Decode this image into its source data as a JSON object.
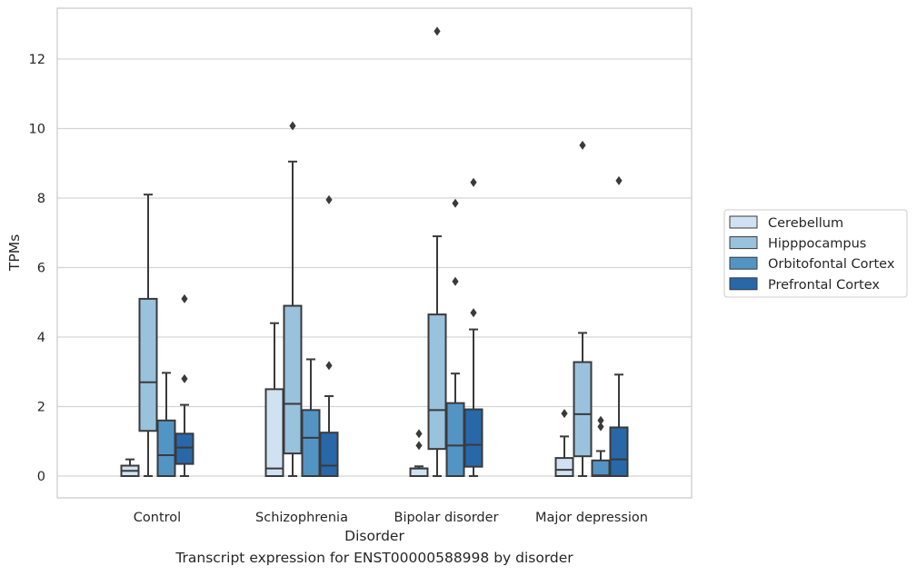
{
  "chart_data": {
    "type": "boxplot",
    "xlabel": "Disorder",
    "ylabel": "TPMs",
    "caption": "Transcript expression for ENST00000588998 by disorder",
    "ylim": [
      -0.6,
      13.5
    ],
    "yticks": [
      0,
      2,
      4,
      6,
      8,
      10,
      12
    ],
    "grid": true,
    "legend_position": "right",
    "categories": [
      "Control",
      "Schizophrenia",
      "Bipolar disorder",
      "Major depression"
    ],
    "series": [
      {
        "name": "Cerebellum",
        "color": "#d0e2f1",
        "boxes": [
          {
            "whislo": 0,
            "q1": 0,
            "med": 0.15,
            "q3": 0.3,
            "whishi": 0.48,
            "fliers": []
          },
          {
            "whislo": 0,
            "q1": 0,
            "med": 0.22,
            "q3": 2.5,
            "whishi": 4.4,
            "fliers": []
          },
          {
            "whislo": 0,
            "q1": 0,
            "med": 0.22,
            "q3": 0.22,
            "whishi": 0.28,
            "fliers": [
              0.88,
              1.22
            ]
          },
          {
            "whislo": 0,
            "q1": 0,
            "med": 0.18,
            "q3": 0.52,
            "whishi": 1.14,
            "fliers": [
              1.8
            ]
          }
        ]
      },
      {
        "name": "Hipppocampus",
        "color": "#99c2dd",
        "boxes": [
          {
            "whislo": 0,
            "q1": 1.3,
            "med": 2.7,
            "q3": 5.1,
            "whishi": 8.1,
            "fliers": []
          },
          {
            "whislo": 0,
            "q1": 0.65,
            "med": 2.08,
            "q3": 4.9,
            "whishi": 9.05,
            "fliers": [
              10.08
            ]
          },
          {
            "whislo": 0,
            "q1": 0.78,
            "med": 1.9,
            "q3": 4.65,
            "whishi": 6.9,
            "fliers": [
              12.8
            ]
          },
          {
            "whislo": 0,
            "q1": 0.57,
            "med": 1.78,
            "q3": 3.28,
            "whishi": 4.12,
            "fliers": [
              9.52
            ]
          }
        ]
      },
      {
        "name": "Orbitofontal Cortex",
        "color": "#5295c5",
        "boxes": [
          {
            "whislo": 0,
            "q1": 0,
            "med": 0.6,
            "q3": 1.6,
            "whishi": 2.97,
            "fliers": []
          },
          {
            "whislo": 0,
            "q1": 0,
            "med": 1.1,
            "q3": 1.9,
            "whishi": 3.36,
            "fliers": []
          },
          {
            "whislo": 0,
            "q1": 0,
            "med": 0.88,
            "q3": 2.1,
            "whishi": 2.95,
            "fliers": [
              5.6,
              7.85
            ]
          },
          {
            "whislo": 0,
            "q1": 0,
            "med": 0.02,
            "q3": 0.45,
            "whishi": 0.72,
            "fliers": [
              1.42,
              1.6
            ]
          }
        ]
      },
      {
        "name": "Prefrontal Cortex",
        "color": "#2868a8",
        "boxes": [
          {
            "whislo": 0,
            "q1": 0.35,
            "med": 0.82,
            "q3": 1.22,
            "whishi": 2.05,
            "fliers": [
              2.8,
              5.1
            ]
          },
          {
            "whislo": 0,
            "q1": 0,
            "med": 0.3,
            "q3": 1.25,
            "whishi": 2.3,
            "fliers": [
              3.18,
              7.95
            ]
          },
          {
            "whislo": 0,
            "q1": 0.27,
            "med": 0.9,
            "q3": 1.92,
            "whishi": 4.22,
            "fliers": [
              4.7,
              8.45
            ]
          },
          {
            "whislo": 0,
            "q1": 0,
            "med": 0.48,
            "q3": 1.4,
            "whishi": 2.92,
            "fliers": [
              8.5
            ]
          }
        ]
      }
    ]
  }
}
